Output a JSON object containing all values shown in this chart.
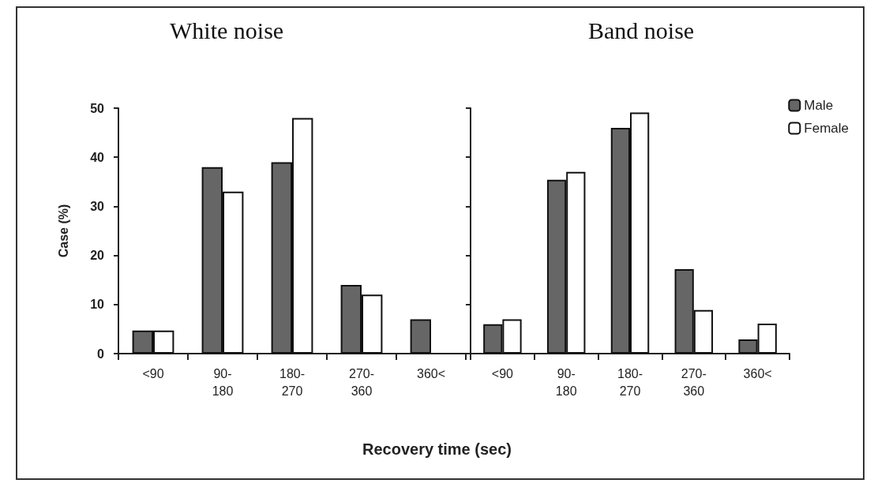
{
  "chart_data": [
    {
      "type": "bar",
      "title": "White noise",
      "ylabel": "Case (%)",
      "xlabel": "Recovery time (sec)",
      "categories": [
        "<90",
        "90-180",
        "180-270",
        "270-360",
        "360<"
      ],
      "series": [
        {
          "color": "#666666",
          "values": [
            4.7,
            38,
            39,
            14,
            7
          ]
        },
        {
          "color": "#ffffff",
          "values": [
            4.7,
            33,
            48,
            12,
            null
          ]
        }
      ],
      "ylim": [
        0,
        50
      ],
      "yticks": [
        0,
        10,
        20,
        30,
        40,
        50
      ],
      "grid": false,
      "legend": false
    },
    {
      "type": "bar",
      "title": "Band noise",
      "categories": [
        "<90",
        "90-180",
        "180-270",
        "270-360",
        "360<"
      ],
      "series": [
        {
          "name": "Male",
          "color": "#666666",
          "values": [
            6,
            35.4,
            46,
            17.2,
            2.9
          ]
        },
        {
          "name": "Female",
          "color": "#ffffff",
          "values": [
            7,
            37,
            49.1,
            8.9,
            6.1
          ]
        }
      ],
      "ylim": [
        0,
        50
      ],
      "yticks": [
        0,
        10,
        20,
        30,
        40,
        50
      ],
      "grid": false,
      "legend": "top right",
      "tick_labels": "x"
    }
  ]
}
